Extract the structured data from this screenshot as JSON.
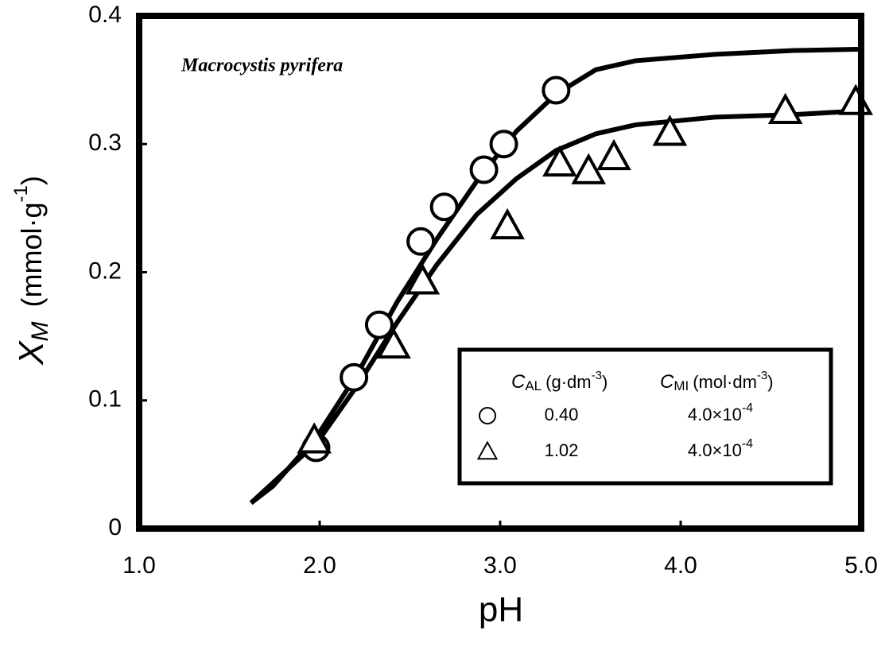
{
  "chart_data": {
    "type": "scatter",
    "annotation": "Macrocystis pyrifera",
    "x_label": "pH",
    "y_label": {
      "symbol": "X",
      "sub": "M",
      "unit": "(mmol·g",
      "sup": "-1",
      "close": ")"
    },
    "xlim": [
      1.0,
      5.0
    ],
    "ylim": [
      0,
      0.4
    ],
    "xticks": [
      {
        "value": 1,
        "label": "1.0"
      },
      {
        "value": 2,
        "label": "2.0"
      },
      {
        "value": 3,
        "label": "3.0"
      },
      {
        "value": 4,
        "label": "4.0"
      },
      {
        "value": 5,
        "label": "5.0"
      }
    ],
    "yticks": [
      0,
      0.1,
      0.2,
      0.3,
      0.4
    ],
    "legend": {
      "headers": [
        {
          "symbol": "C",
          "sub": "AL",
          "unit": "(g·dm",
          "sup": "-3",
          "close": ")"
        },
        {
          "symbol": "C",
          "sub": "MI",
          "unit": "(mol·dm",
          "sup": "-3",
          "close": ")"
        }
      ]
    },
    "series": [
      {
        "name": "0.40",
        "c_mi": "4.0×10",
        "c_mi_exp": "-4",
        "marker": "circle",
        "color": "#000000",
        "x": [
          1.98,
          2.19,
          2.33,
          2.56,
          2.69,
          2.91,
          3.02,
          3.31
        ],
        "values": [
          0.063,
          0.118,
          0.159,
          0.224,
          0.251,
          0.28,
          0.3,
          0.342
        ],
        "fit_x": [
          1.62,
          1.74,
          1.99,
          2.21,
          2.43,
          2.65,
          2.87,
          3.09,
          3.31,
          3.53,
          3.75,
          4.19,
          4.63,
          5.0
        ],
        "fit_values": [
          0.02,
          0.033,
          0.073,
          0.121,
          0.177,
          0.226,
          0.271,
          0.31,
          0.339,
          0.358,
          0.365,
          0.37,
          0.373,
          0.374
        ]
      },
      {
        "name": "1.02",
        "c_mi": "4.0×10",
        "c_mi_exp": "-4",
        "marker": "triangle",
        "color": "#000000",
        "x": [
          1.97,
          2.41,
          2.57,
          3.04,
          3.33,
          3.49,
          3.63,
          3.94,
          4.58,
          4.97
        ],
        "values": [
          0.069,
          0.143,
          0.193,
          0.236,
          0.285,
          0.279,
          0.29,
          0.309,
          0.326,
          0.333
        ],
        "fit_x": [
          1.62,
          1.99,
          2.21,
          2.43,
          2.65,
          2.87,
          3.09,
          3.31,
          3.53,
          3.75,
          4.19,
          4.63,
          5.0
        ],
        "fit_values": [
          0.02,
          0.068,
          0.112,
          0.161,
          0.206,
          0.245,
          0.273,
          0.295,
          0.308,
          0.315,
          0.321,
          0.323,
          0.326
        ]
      }
    ]
  }
}
